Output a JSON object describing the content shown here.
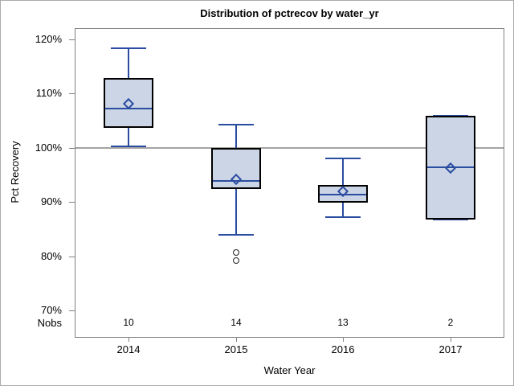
{
  "chart_data": {
    "type": "box",
    "title": "Distribution of pctrecov by water_yr",
    "xlabel": "Water Year",
    "ylabel": "Pct Recovery",
    "categories": [
      "2014",
      "2015",
      "2016",
      "2017"
    ],
    "nobs_row": {
      "label": "Nobs",
      "values": [
        "10",
        "14",
        "13",
        "2"
      ]
    },
    "yticks": [
      70,
      80,
      90,
      100,
      110,
      120
    ],
    "ytick_suffix": "%",
    "ylim": [
      65,
      122
    ],
    "reference_line": 100,
    "grid": false,
    "legend": "none",
    "series": [
      {
        "label": "2014",
        "low": 100.2,
        "q1": 103.6,
        "median": 107.2,
        "mean": 108.1,
        "q3": 112.8,
        "high": 118.3,
        "outliers": []
      },
      {
        "label": "2015",
        "low": 84.0,
        "q1": 92.4,
        "median": 93.8,
        "mean": 94.2,
        "q3": 100.0,
        "high": 104.3,
        "outliers": [
          80.7,
          79.2
        ]
      },
      {
        "label": "2016",
        "low": 87.2,
        "q1": 89.9,
        "median": 91.3,
        "mean": 91.9,
        "q3": 93.2,
        "high": 98.0,
        "outliers": []
      },
      {
        "label": "2017",
        "low": 86.8,
        "q1": 86.8,
        "median": 96.4,
        "mean": 96.3,
        "q3": 105.9,
        "high": 105.9,
        "outliers": []
      }
    ],
    "colors": {
      "box_fill": "#ccd5e6",
      "box_border": "#000000",
      "line_blue": "#2b4da0",
      "outlier": "#222222",
      "axis_gray": "#828282",
      "reference_gray": "#a3a3a3",
      "text": "#000000"
    }
  }
}
